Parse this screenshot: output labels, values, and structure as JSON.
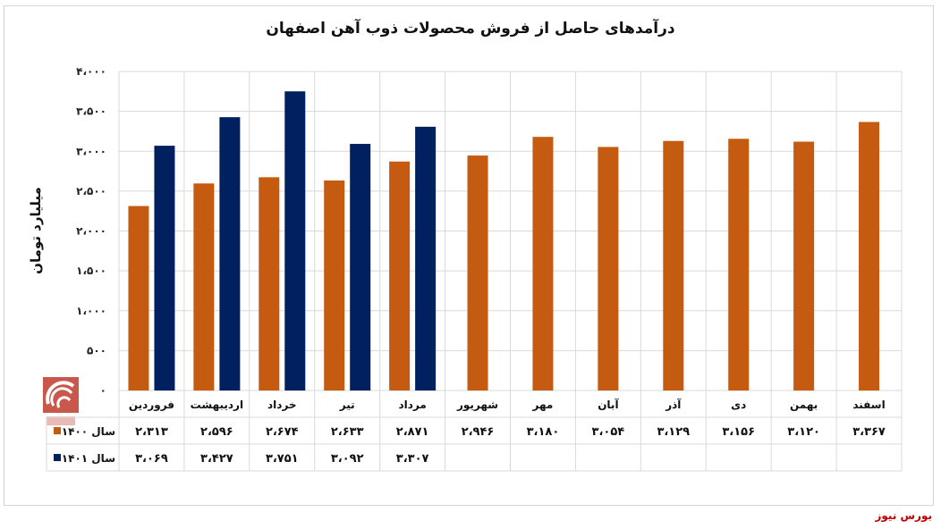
{
  "chart_data": {
    "type": "bar",
    "title": "درآمدهای حاصل از فروش محصولات ذوب آهن اصفهان",
    "xlabel": "",
    "ylabel": "میلیارد تومان",
    "ylim": [
      0,
      4000
    ],
    "yticks": [
      0,
      500,
      1000,
      1500,
      2000,
      2500,
      3000,
      3500,
      4000
    ],
    "ytick_labels": [
      "۰",
      "۵۰۰",
      "۱،۰۰۰",
      "۱،۵۰۰",
      "۲،۰۰۰",
      "۲،۵۰۰",
      "۳،۰۰۰",
      "۳،۵۰۰",
      "۴،۰۰۰"
    ],
    "grid": true,
    "legend": "data-table",
    "categories": [
      "فروردین",
      "اردیبهشت",
      "خرداد",
      "تیر",
      "مرداد",
      "شهریور",
      "مهر",
      "آبان",
      "آذر",
      "دی",
      "بهمن",
      "اسفند"
    ],
    "series": [
      {
        "name": "سال ۱۴۰۰",
        "color": "#c55a11",
        "values": [
          2313,
          2596,
          2674,
          2633,
          2871,
          2946,
          3180,
          3054,
          3129,
          3156,
          3120,
          3367
        ],
        "labels": [
          "۲،۳۱۳",
          "۲،۵۹۶",
          "۲،۶۷۴",
          "۲،۶۳۳",
          "۲،۸۷۱",
          "۲،۹۴۶",
          "۳،۱۸۰",
          "۳،۰۵۴",
          "۳،۱۲۹",
          "۳،۱۵۶",
          "۳،۱۲۰",
          "۳،۳۶۷"
        ]
      },
      {
        "name": "سال ۱۴۰۱",
        "color": "#002060",
        "values": [
          3069,
          3427,
          3751,
          3092,
          3307,
          null,
          null,
          null,
          null,
          null,
          null,
          null
        ],
        "labels": [
          "۳،۰۶۹",
          "۳،۴۲۷",
          "۳،۷۵۱",
          "۳،۰۹۲",
          "۳،۳۰۷",
          "",
          "",
          "",
          "",
          "",
          "",
          ""
        ]
      }
    ]
  },
  "source": "بورس نیوز"
}
